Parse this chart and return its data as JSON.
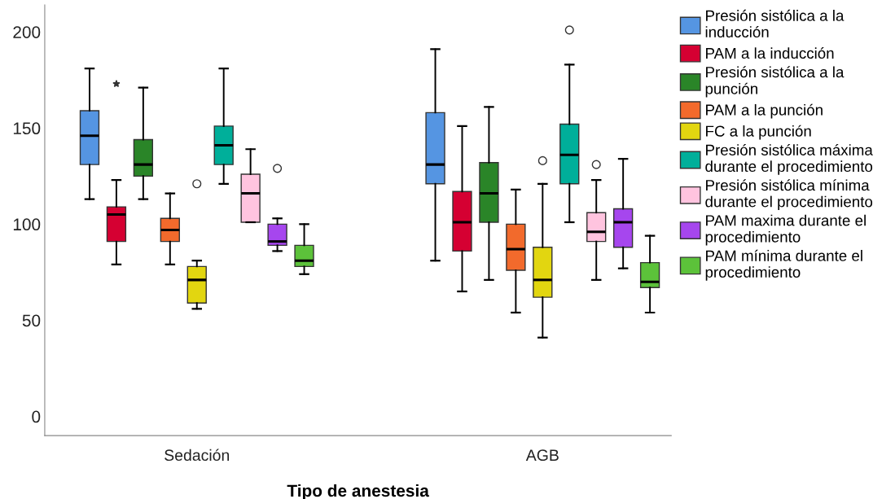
{
  "chart_data": {
    "type": "box",
    "xlabel": "Tipo de anestesia",
    "categories": [
      "Sedación",
      "AGB"
    ],
    "ylim": [
      -10,
      214
    ],
    "yticks": [
      0,
      50,
      100,
      150,
      200
    ],
    "grid": false,
    "legend": "right",
    "marker": "circle",
    "series": [
      {
        "name": "Presión sistólica a la inducción",
        "color": "#5595e2",
        "boxes": [
          {
            "low": 113,
            "q1": 131,
            "median": 146,
            "q3": 159,
            "high": 181
          },
          {
            "low": 81,
            "q1": 121,
            "median": 131,
            "q3": 158,
            "high": 191
          }
        ]
      },
      {
        "name": "PAM a la inducción",
        "color": "#d50032",
        "marker": "star",
        "boxes": [
          {
            "low": 79,
            "q1": 91,
            "median": 105,
            "q3": 109,
            "high": 123,
            "outliers": [
              173
            ]
          },
          {
            "low": 65,
            "q1": 86,
            "median": 101,
            "q3": 117,
            "high": 151
          }
        ]
      },
      {
        "name": "Presión sistólica a la punción",
        "color": "#2a8528",
        "boxes": [
          {
            "low": 113,
            "q1": 125,
            "median": 131,
            "q3": 144,
            "high": 171
          },
          {
            "low": 71,
            "q1": 101,
            "median": 116,
            "q3": 132,
            "high": 161
          }
        ]
      },
      {
        "name": "PAM a la punción",
        "color": "#f26a2c",
        "boxes": [
          {
            "low": 79,
            "q1": 91,
            "median": 97,
            "q3": 103,
            "high": 116
          },
          {
            "low": 54,
            "q1": 76,
            "median": 87,
            "q3": 100,
            "high": 118
          }
        ]
      },
      {
        "name": "FC a la punción",
        "color": "#e2d610",
        "boxes": [
          {
            "low": 56,
            "q1": 59,
            "median": 71,
            "q3": 78,
            "high": 81,
            "outliers": [
              121
            ]
          },
          {
            "low": 41,
            "q1": 62,
            "median": 71,
            "q3": 88,
            "high": 121,
            "outliers": [
              133
            ]
          }
        ]
      },
      {
        "name": "Presión sistólica máxima durante el procedimiento",
        "color": "#00af9a",
        "boxes": [
          {
            "low": 121,
            "q1": 131,
            "median": 141,
            "q3": 151,
            "high": 181
          },
          {
            "low": 101,
            "q1": 121,
            "median": 136,
            "q3": 152,
            "high": 183,
            "outliers": [
              201
            ]
          }
        ]
      },
      {
        "name": "Presión sistólica mínima durante el procedimiento",
        "color": "#ffc4df",
        "boxes": [
          {
            "low": 101,
            "q1": 101,
            "median": 116,
            "q3": 126,
            "high": 139
          },
          {
            "low": 71,
            "q1": 91,
            "median": 96,
            "q3": 106,
            "high": 123,
            "outliers": [
              131
            ]
          }
        ]
      },
      {
        "name": "PAM maxima durante el procedimiento",
        "color": "#a646ee",
        "boxes": [
          {
            "low": 86,
            "q1": 89,
            "median": 91,
            "q3": 100,
            "high": 103,
            "outliers": [
              129
            ]
          },
          {
            "low": 77,
            "q1": 88,
            "median": 101,
            "q3": 108,
            "high": 134
          }
        ]
      },
      {
        "name": "PAM mínima durante el procedimiento",
        "color": "#5cc23a",
        "boxes": [
          {
            "low": 74,
            "q1": 78,
            "median": 81,
            "q3": 89,
            "high": 100
          },
          {
            "low": 54,
            "q1": 67,
            "median": 70,
            "q3": 80,
            "high": 94
          }
        ]
      }
    ]
  }
}
